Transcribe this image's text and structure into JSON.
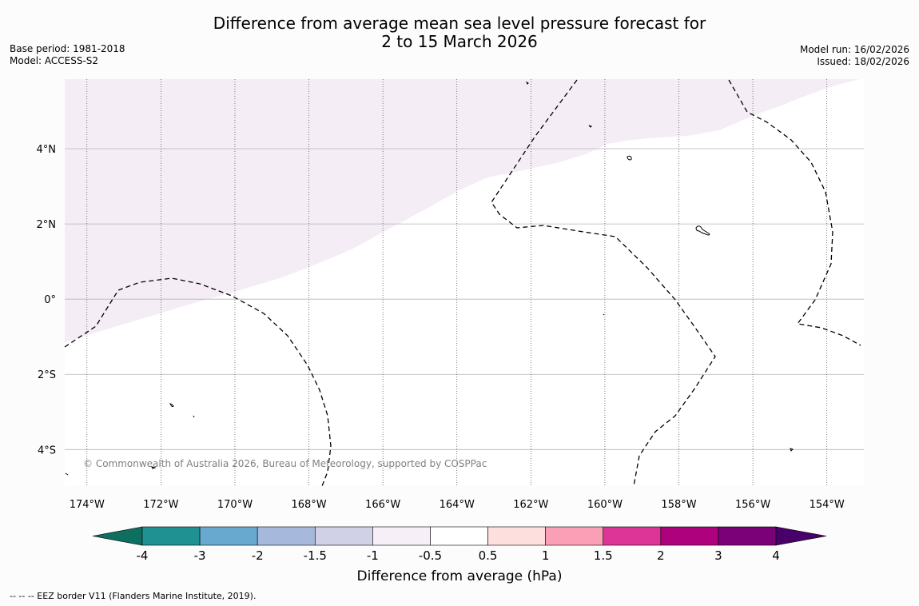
{
  "title": {
    "line1": "Difference from average mean sea level pressure forecast for",
    "line2": "2 to 15 March 2026"
  },
  "meta_left": {
    "base_period": "Base period: 1981-2018",
    "model": "Model: ACCESS-S2"
  },
  "meta_right": {
    "model_run": "Model run: 16/02/2026",
    "issued": "Issued: 18/02/2026"
  },
  "map": {
    "lat_labels": [
      "4°N",
      "2°N",
      "0°",
      "2°S",
      "4°S"
    ],
    "lat_values": [
      4,
      2,
      0,
      -2,
      -4
    ],
    "lon_labels": [
      "174°W",
      "172°W",
      "170°W",
      "168°W",
      "166°W",
      "164°W",
      "162°W",
      "160°W",
      "158°W",
      "156°W",
      "154°W"
    ],
    "lon_values": [
      -174,
      -172,
      -170,
      -168,
      -166,
      -164,
      -162,
      -160,
      -158,
      -156,
      -154
    ],
    "extent": {
      "lon_min": -174.6,
      "lon_max": -153.0,
      "lat_min": -4.95,
      "lat_max": 5.85
    },
    "shaded_region_color": "#f5edf6",
    "copyright": "© Commonwealth of Australia 2026, Bureau of Meteorology, supported by COSPPac"
  },
  "colorbar": {
    "label": "Difference from average (hPa)",
    "tick_labels": [
      "-4",
      "-3",
      "-2",
      "-1.5",
      "-1",
      "-0.5",
      "0.5",
      "1",
      "1.5",
      "2",
      "3",
      "4"
    ],
    "colors": [
      "#0e6e60",
      "#1f9193",
      "#67a9cf",
      "#a6b9dc",
      "#d0d1e6",
      "#f6eff7",
      "#ffffff",
      "#fde0dd",
      "#fa9fb5",
      "#dd3497",
      "#ae017e",
      "#7a0177",
      "#49006a"
    ]
  },
  "footnote": "--  --  -- EEZ border V11 (Flanders Marine Institute, 2019)."
}
